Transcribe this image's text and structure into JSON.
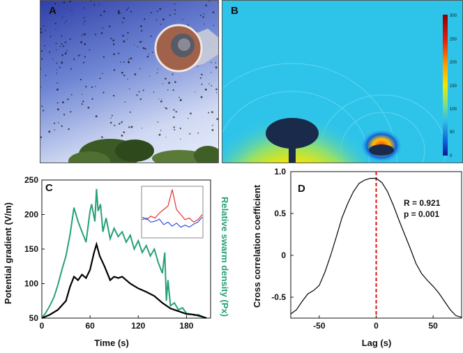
{
  "panels": {
    "a": {
      "label": "A"
    },
    "b": {
      "label": "B",
      "colorbar": {
        "ticks": [
          "300",
          "250",
          "200",
          "150",
          "100",
          "50",
          "0"
        ],
        "colors": [
          "#8b0000",
          "#e02010",
          "#ff9a00",
          "#f5e600",
          "#8fe070",
          "#30c0e8",
          "#1060d8",
          "#0a1a8c"
        ]
      }
    },
    "c": {
      "label": "C"
    },
    "d": {
      "label": "D",
      "annotation_r": "R = 0.921",
      "annotation_p": "p = 0.001"
    }
  },
  "chart_data": [
    {
      "panel": "C",
      "type": "line",
      "xlabel": "Time (s)",
      "ylabel": "Potential gradient (V/m)",
      "y2label": "Relative swarm density (Px)",
      "xlim": [
        0,
        210
      ],
      "ylim": [
        50,
        250
      ],
      "xticks": [
        0,
        60,
        120,
        180
      ],
      "yticks": [
        50,
        100,
        150,
        200,
        250
      ],
      "series": [
        {
          "color": "#000000",
          "x": [
            0,
            10,
            20,
            30,
            35,
            40,
            45,
            50,
            55,
            60,
            65,
            68,
            72,
            78,
            85,
            90,
            95,
            100,
            110,
            120,
            130,
            140,
            150,
            160,
            170,
            180,
            190,
            200,
            205
          ],
          "y": [
            50,
            55,
            62,
            75,
            95,
            110,
            105,
            113,
            108,
            120,
            145,
            157,
            140,
            125,
            105,
            110,
            108,
            110,
            100,
            93,
            88,
            82,
            72,
            64,
            60,
            56,
            55,
            52,
            50
          ]
        },
        {
          "color": "#26a077",
          "x": [
            0,
            5,
            10,
            15,
            20,
            25,
            30,
            35,
            40,
            45,
            50,
            55,
            60,
            62,
            66,
            68,
            70,
            73,
            76,
            80,
            85,
            90,
            95,
            100,
            105,
            110,
            115,
            120,
            125,
            130,
            135,
            140,
            145,
            150,
            153,
            155,
            157,
            160,
            165,
            170,
            175,
            180,
            185,
            190,
            195,
            200,
            205
          ],
          "y": [
            50,
            58,
            68,
            80,
            98,
            120,
            140,
            170,
            210,
            190,
            175,
            160,
            205,
            215,
            190,
            237,
            205,
            215,
            175,
            195,
            165,
            180,
            168,
            175,
            160,
            170,
            150,
            162,
            145,
            155,
            140,
            150,
            130,
            115,
            145,
            75,
            105,
            68,
            72,
            62,
            65,
            57,
            56,
            54,
            55,
            52,
            50
          ]
        }
      ],
      "inset": {
        "series": [
          {
            "color": "#e03030",
            "y": [
              0.4,
              0.35,
              0.42,
              0.38,
              0.48,
              0.55,
              0.62,
              0.95,
              0.55,
              0.45,
              0.35,
              0.38,
              0.3,
              0.35,
              0.45
            ]
          },
          {
            "color": "#3050e0",
            "y": [
              0.35,
              0.38,
              0.3,
              0.32,
              0.36,
              0.25,
              0.3,
              0.22,
              0.28,
              0.2,
              0.24,
              0.2,
              0.26,
              0.3,
              0.4
            ]
          }
        ]
      }
    },
    {
      "panel": "D",
      "type": "line",
      "xlabel": "Lag (s)",
      "ylabel": "Cross correlation coefficient",
      "xlim": [
        -75,
        75
      ],
      "ylim": [
        -0.75,
        1.0
      ],
      "xticks": [
        -50,
        0,
        50
      ],
      "yticks": [
        "-0.5",
        "0",
        "0.5",
        "1.0"
      ],
      "series": [
        {
          "color": "#000000",
          "x": [
            -75,
            -70,
            -65,
            -60,
            -55,
            -50,
            -45,
            -40,
            -35,
            -30,
            -25,
            -20,
            -15,
            -10,
            -5,
            0,
            5,
            10,
            15,
            20,
            25,
            30,
            35,
            40,
            45,
            50,
            55,
            60,
            65,
            70,
            75
          ],
          "y": [
            -0.7,
            -0.65,
            -0.55,
            -0.46,
            -0.42,
            -0.36,
            -0.2,
            0.0,
            0.22,
            0.45,
            0.62,
            0.76,
            0.86,
            0.9,
            0.92,
            0.92,
            0.87,
            0.76,
            0.6,
            0.42,
            0.25,
            0.08,
            -0.1,
            -0.22,
            -0.3,
            -0.37,
            -0.45,
            -0.55,
            -0.65,
            -0.72,
            -0.74
          ]
        }
      ],
      "reference_line": {
        "x": 0,
        "color": "#dd1111",
        "style": "dashed"
      }
    }
  ]
}
